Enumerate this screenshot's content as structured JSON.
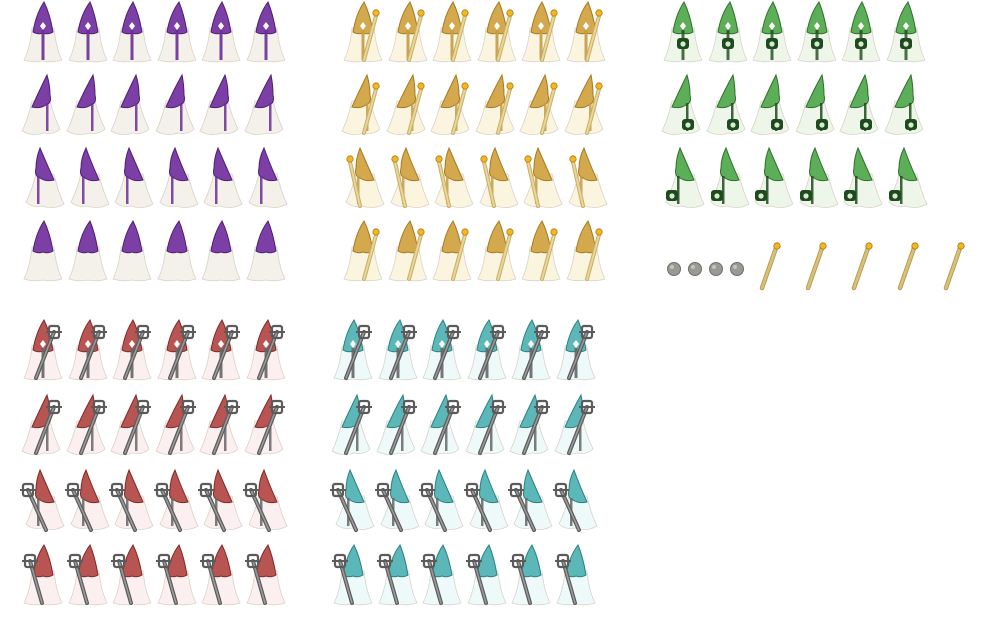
{
  "sprite_sheet": {
    "background": "#ffffff",
    "groups": [
      {
        "name": "purple-wizard",
        "hat_color": "#7b3fa6",
        "hat_dark": "#4e1f73",
        "robe_color": "#f4f0ea",
        "trim_color": "#6a2d96",
        "prop": "none",
        "rows": [
          {
            "facing": "front",
            "frames": 6
          },
          {
            "facing": "right",
            "frames": 6
          },
          {
            "facing": "left",
            "frames": 6
          },
          {
            "facing": "back",
            "frames": 6
          }
        ]
      },
      {
        "name": "gold-wizard",
        "hat_color": "#d4a84c",
        "hat_dark": "#a57a22",
        "robe_color": "#fbf4df",
        "trim_color": "#c49b46",
        "prop": "torch-staff",
        "rows": [
          {
            "facing": "front",
            "frames": 6
          },
          {
            "facing": "right",
            "frames": 6
          },
          {
            "facing": "left",
            "frames": 6
          },
          {
            "facing": "back",
            "frames": 6
          }
        ]
      },
      {
        "name": "green-wizard",
        "hat_color": "#5dae58",
        "hat_dark": "#2f6f2b",
        "robe_color": "#eef6ea",
        "trim_color": "#1f4a1d",
        "prop": "lantern",
        "rows": [
          {
            "facing": "front",
            "frames": 6
          },
          {
            "facing": "right",
            "frames": 6
          },
          {
            "facing": "left",
            "frames": 6
          }
        ]
      },
      {
        "name": "red-wizard",
        "hat_color": "#b85451",
        "hat_dark": "#7c2b29",
        "robe_color": "#fbefef",
        "trim_color": "#666666",
        "prop": "iron-staff",
        "rows": [
          {
            "facing": "front",
            "frames": 6
          },
          {
            "facing": "right",
            "frames": 6
          },
          {
            "facing": "left",
            "frames": 6
          },
          {
            "facing": "back",
            "frames": 6
          }
        ]
      },
      {
        "name": "teal-wizard",
        "hat_color": "#5bb7b8",
        "hat_dark": "#2c7f80",
        "robe_color": "#eefafa",
        "trim_color": "#666666",
        "prop": "iron-staff",
        "rows": [
          {
            "facing": "front",
            "frames": 6
          },
          {
            "facing": "right",
            "frames": 6
          },
          {
            "facing": "left",
            "frames": 6
          },
          {
            "facing": "back",
            "frames": 6
          }
        ]
      }
    ],
    "items": {
      "orbs": {
        "count": 4,
        "color": "#9a9a94"
      },
      "torches": {
        "count": 5,
        "stick_color": "#d9c27c",
        "flame_color": "#f2b722"
      }
    }
  }
}
